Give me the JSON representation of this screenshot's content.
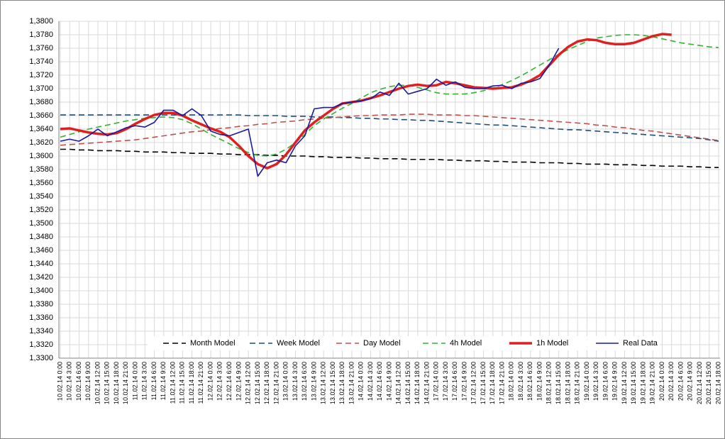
{
  "chart_data": {
    "type": "line",
    "categories": [
      "10.02.14 0:00",
      "10.02.14 3:00",
      "10.02.14 6:00",
      "10.02.14 9:00",
      "10.02.14 12:00",
      "10.02.14 15:00",
      "10.02.14 18:00",
      "10.02.14 21:00",
      "11.02.14 0:00",
      "11.02.14 3:00",
      "11.02.14 6:00",
      "11.02.14 9:00",
      "11.02.14 12:00",
      "11.02.14 15:00",
      "11.02.14 18:00",
      "11.02.14 21:00",
      "12.02.14 0:00",
      "12.02.14 3:00",
      "12.02.14 6:00",
      "12.02.14 9:00",
      "12.02.14 12:00",
      "12.02.14 15:00",
      "12.02.14 18:00",
      "12.02.14 21:00",
      "13.02.14 0:00",
      "13.02.14 3:00",
      "13.02.14 6:00",
      "13.02.14 9:00",
      "13.02.14 12:00",
      "13.02.14 15:00",
      "13.02.14 18:00",
      "13.02.14 21:00",
      "14.02.14 0:00",
      "14.02.14 3:00",
      "14.02.14 6:00",
      "14.02.14 9:00",
      "14.02.14 12:00",
      "14.02.14 15:00",
      "14.02.14 18:00",
      "14.02.14 21:00",
      "17.02.14 0:00",
      "17.02.14 3:00",
      "17.02.14 6:00",
      "17.02.14 9:00",
      "17.02.14 12:00",
      "17.02.14 15:00",
      "17.02.14 18:00",
      "17.02.14 21:00",
      "18.02.14 0:00",
      "18.02.14 3:00",
      "18.02.14 6:00",
      "18.02.14 9:00",
      "18.02.14 12:00",
      "18.02.14 15:00",
      "18.02.14 18:00",
      "18.02.14 21:00",
      "19.02.14 0:00",
      "19.02.14 3:00",
      "19.02.14 6:00",
      "19.02.14 9:00",
      "19.02.14 12:00",
      "19.02.14 15:00",
      "19.02.14 18:00",
      "19.02.14 21:00",
      "20.02.14 0:00",
      "20.02.14 3:00",
      "20.02.14 6:00",
      "20.02.14 9:00",
      "20.02.14 12:00",
      "20.02.14 15:00",
      "20.02.14 18:00"
    ],
    "series": [
      {
        "name": "Month Model",
        "color": "#000000",
        "line_style": "dashed",
        "values": [
          1.361,
          1.361,
          1.3609,
          1.3609,
          1.3608,
          1.3608,
          1.3608,
          1.3607,
          1.3607,
          1.3606,
          1.3606,
          1.3606,
          1.3605,
          1.3605,
          1.3604,
          1.3604,
          1.3604,
          1.3603,
          1.3603,
          1.3602,
          1.3602,
          1.3602,
          1.3601,
          1.3601,
          1.36,
          1.36,
          1.36,
          1.3599,
          1.3599,
          1.3598,
          1.3598,
          1.3598,
          1.3597,
          1.3597,
          1.3596,
          1.3596,
          1.3596,
          1.3595,
          1.3595,
          1.3595,
          1.3595,
          1.3594,
          1.3594,
          1.3593,
          1.3593,
          1.3593,
          1.3592,
          1.3592,
          1.3591,
          1.3591,
          1.3591,
          1.359,
          1.359,
          1.359,
          1.3589,
          1.3589,
          1.3588,
          1.3588,
          1.3588,
          1.3587,
          1.3587,
          1.3587,
          1.3586,
          1.3586,
          1.3585,
          1.3585,
          1.3585,
          1.3584,
          1.3584,
          1.3583,
          1.3583
        ]
      },
      {
        "name": "Week Model",
        "color": "#1f4e79",
        "line_style": "dashed",
        "values": [
          1.3661,
          1.3661,
          1.3661,
          1.3661,
          1.3661,
          1.3661,
          1.3661,
          1.3661,
          1.3661,
          1.3661,
          1.3661,
          1.3661,
          1.3661,
          1.3661,
          1.3661,
          1.3661,
          1.3661,
          1.3661,
          1.3661,
          1.3661,
          1.366,
          1.366,
          1.366,
          1.366,
          1.3659,
          1.3659,
          1.3659,
          1.3658,
          1.3658,
          1.3658,
          1.3657,
          1.3657,
          1.3656,
          1.3656,
          1.3655,
          1.3655,
          1.3654,
          1.3654,
          1.3653,
          1.3653,
          1.3652,
          1.3651,
          1.365,
          1.3649,
          1.3648,
          1.3647,
          1.3646,
          1.3646,
          1.3645,
          1.3644,
          1.3643,
          1.3642,
          1.3641,
          1.364,
          1.3639,
          1.3639,
          1.3638,
          1.3637,
          1.3636,
          1.3635,
          1.3634,
          1.3633,
          1.3632,
          1.3631,
          1.363,
          1.3629,
          1.3628,
          1.3627,
          1.3626,
          1.3624,
          1.3622
        ]
      },
      {
        "name": "Day Model",
        "color": "#c0504d",
        "line_style": "dashed",
        "values": [
          1.3616,
          1.3617,
          1.3618,
          1.3619,
          1.362,
          1.3621,
          1.3622,
          1.3623,
          1.3624,
          1.3626,
          1.3628,
          1.363,
          1.3632,
          1.3634,
          1.3636,
          1.3637,
          1.3639,
          1.3641,
          1.3642,
          1.3644,
          1.3645,
          1.3647,
          1.3648,
          1.365,
          1.3651,
          1.3652,
          1.3654,
          1.3655,
          1.3656,
          1.3657,
          1.3658,
          1.3659,
          1.366,
          1.366,
          1.3661,
          1.3661,
          1.3661,
          1.3662,
          1.3662,
          1.3662,
          1.3661,
          1.3661,
          1.3661,
          1.366,
          1.366,
          1.3659,
          1.3658,
          1.3657,
          1.3656,
          1.3655,
          1.3654,
          1.3653,
          1.3652,
          1.3651,
          1.365,
          1.3649,
          1.3648,
          1.3646,
          1.3645,
          1.3643,
          1.3642,
          1.364,
          1.3638,
          1.3637,
          1.3635,
          1.3633,
          1.3631,
          1.3629,
          1.3627,
          1.3625,
          1.3623
        ]
      },
      {
        "name": "4h Model",
        "color": "#33b233",
        "line_style": "dashed",
        "values": [
          1.3628,
          1.3632,
          1.3636,
          1.364,
          1.3643,
          1.3646,
          1.3649,
          1.3652,
          1.3654,
          1.3656,
          1.3657,
          1.3658,
          1.3657,
          1.3654,
          1.3648,
          1.364,
          1.3632,
          1.3625,
          1.3618,
          1.3611,
          1.3605,
          1.3601,
          1.36,
          1.3603,
          1.361,
          1.362,
          1.3632,
          1.3645,
          1.3655,
          1.3663,
          1.3671,
          1.3678,
          1.3686,
          1.3694,
          1.3699,
          1.3703,
          1.3705,
          1.3705,
          1.3702,
          1.3698,
          1.3694,
          1.3692,
          1.3692,
          1.3692,
          1.3694,
          1.3697,
          1.3701,
          1.3706,
          1.3712,
          1.3719,
          1.3727,
          1.3735,
          1.3743,
          1.3751,
          1.3758,
          1.3764,
          1.377,
          1.3775,
          1.3777,
          1.3779,
          1.378,
          1.378,
          1.3779,
          1.3777,
          1.3774,
          1.3771,
          1.3768,
          1.3766,
          1.3764,
          1.3762,
          1.3761
        ]
      },
      {
        "name": "1h Model",
        "color": "#e02020",
        "line_style": "thick",
        "values": [
          1.364,
          1.3641,
          1.3638,
          1.3635,
          1.3633,
          1.3632,
          1.3634,
          1.364,
          1.3648,
          1.3655,
          1.3661,
          1.3664,
          1.3664,
          1.366,
          1.3653,
          1.3647,
          1.3641,
          1.3636,
          1.3628,
          1.3615,
          1.36,
          1.3588,
          1.3582,
          1.3588,
          1.3602,
          1.362,
          1.3638,
          1.365,
          1.366,
          1.367,
          1.3678,
          1.368,
          1.3682,
          1.3686,
          1.369,
          1.3695,
          1.37,
          1.3704,
          1.3706,
          1.3704,
          1.3705,
          1.371,
          1.3708,
          1.3705,
          1.3702,
          1.3701,
          1.37,
          1.3701,
          1.3702,
          1.3706,
          1.3712,
          1.372,
          1.3735,
          1.375,
          1.3762,
          1.377,
          1.3773,
          1.3772,
          1.3768,
          1.3766,
          1.3766,
          1.3768,
          1.3773,
          1.3778,
          1.3781,
          1.378,
          null,
          null,
          null,
          null,
          null
        ]
      },
      {
        "name": "Real Data",
        "color": "#1a1aa0",
        "line_style": "solid",
        "values": [
          1.3622,
          1.3625,
          1.3622,
          1.363,
          1.364,
          1.363,
          1.3636,
          1.3642,
          1.3645,
          1.3643,
          1.365,
          1.3668,
          1.3668,
          1.366,
          1.367,
          1.366,
          1.3637,
          1.3632,
          1.363,
          1.3635,
          1.364,
          1.357,
          1.359,
          1.3594,
          1.359,
          1.3615,
          1.363,
          1.367,
          1.3672,
          1.3672,
          1.3678,
          1.368,
          1.3682,
          1.3685,
          1.3695,
          1.369,
          1.3708,
          1.3692,
          1.3696,
          1.37,
          1.3714,
          1.3705,
          1.371,
          1.3702,
          1.37,
          1.37,
          1.3704,
          1.3705,
          1.37,
          1.3708,
          1.371,
          1.3715,
          1.3735,
          1.376,
          null,
          null,
          null,
          null,
          null,
          null,
          null,
          null,
          null,
          null,
          null,
          null,
          null,
          null,
          null,
          null,
          null
        ]
      }
    ],
    "ylim": [
      1.33,
      1.38
    ],
    "yticks": [
      {
        "value": 1.33,
        "label": "1,3300"
      },
      {
        "value": 1.332,
        "label": "1,3320"
      },
      {
        "value": 1.334,
        "label": "1,3340"
      },
      {
        "value": 1.336,
        "label": "1,3360"
      },
      {
        "value": 1.338,
        "label": "1,3380"
      },
      {
        "value": 1.34,
        "label": "1,3400"
      },
      {
        "value": 1.342,
        "label": "1,3420"
      },
      {
        "value": 1.344,
        "label": "1,3440"
      },
      {
        "value": 1.346,
        "label": "1,3460"
      },
      {
        "value": 1.348,
        "label": "1,3480"
      },
      {
        "value": 1.35,
        "label": "1,3500"
      },
      {
        "value": 1.352,
        "label": "1,3520"
      },
      {
        "value": 1.354,
        "label": "1,3540"
      },
      {
        "value": 1.356,
        "label": "1,3560"
      },
      {
        "value": 1.358,
        "label": "1,3580"
      },
      {
        "value": 1.36,
        "label": "1,3600"
      },
      {
        "value": 1.362,
        "label": "1,3620"
      },
      {
        "value": 1.364,
        "label": "1,3640"
      },
      {
        "value": 1.366,
        "label": "1,3660"
      },
      {
        "value": 1.368,
        "label": "1,3680"
      },
      {
        "value": 1.37,
        "label": "1,3700"
      },
      {
        "value": 1.372,
        "label": "1,3720"
      },
      {
        "value": 1.374,
        "label": "1,3740"
      },
      {
        "value": 1.376,
        "label": "1,3760"
      },
      {
        "value": 1.378,
        "label": "1,3780"
      },
      {
        "value": 1.38,
        "label": "1,3800"
      }
    ],
    "grid": true,
    "legend": "bottom"
  }
}
